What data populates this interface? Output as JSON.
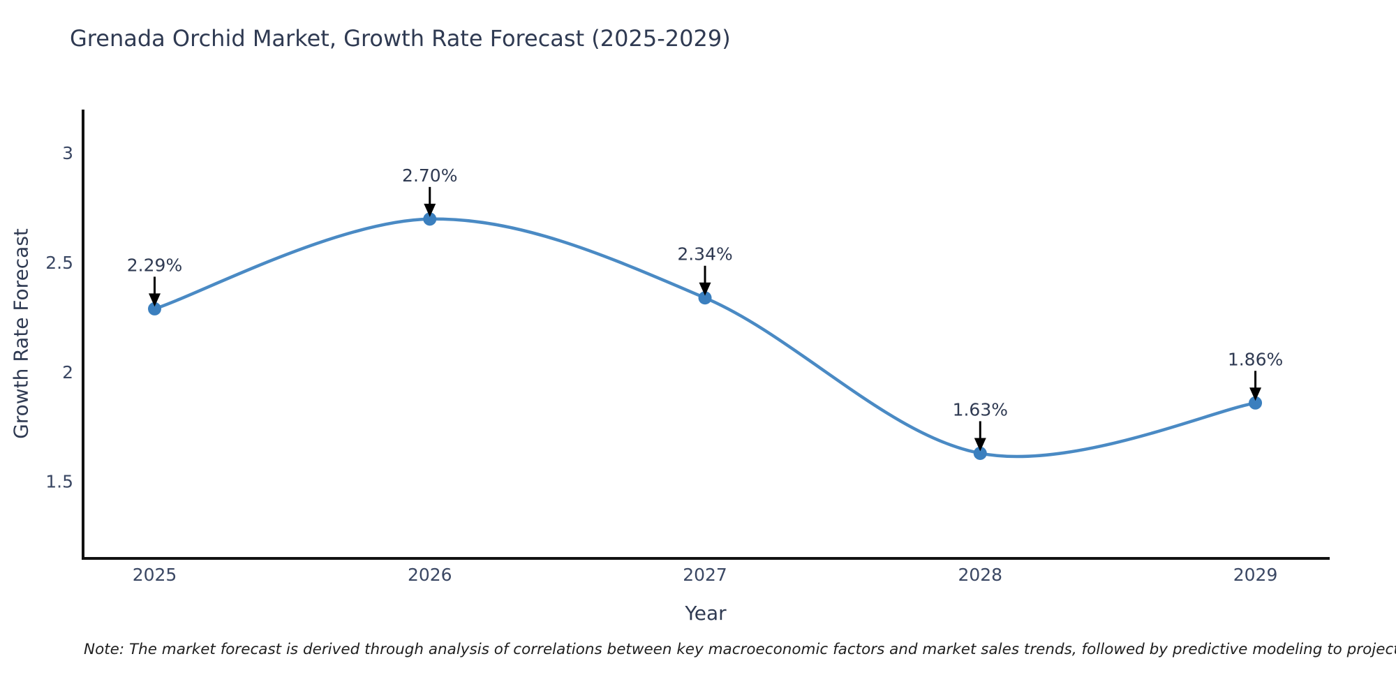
{
  "title": "Grenada Orchid Market, Growth Rate Forecast (2025-2029)",
  "note": "Note: The market forecast is derived through analysis of correlations between key macroeconomic factors and market sales trends, followed by predictive modeling to project future sales",
  "colors": {
    "background": "#ffffff",
    "title_text": "#2f3a52",
    "tick_text": "#3a4763",
    "annotation_text": "#2f3a52",
    "axis_line": "#111111",
    "line": "#4a8ac4",
    "marker": "#3b7fbe",
    "arrow": "#000000",
    "note_text": "#1f1f1f"
  },
  "chart_data": {
    "type": "line",
    "title": "Grenada Orchid Market, Growth Rate Forecast (2025-2029)",
    "xlabel": "Year",
    "ylabel": "Growth Rate Forecast",
    "x": [
      2025,
      2026,
      2027,
      2028,
      2029
    ],
    "values": [
      2.29,
      2.7,
      2.34,
      1.63,
      1.86
    ],
    "point_labels": [
      "2.29%",
      "2.70%",
      "2.34%",
      "1.63%",
      "1.86%"
    ],
    "xticks": [
      "2025",
      "2026",
      "2027",
      "2028",
      "2029"
    ],
    "xtick_values": [
      2025,
      2026,
      2027,
      2028,
      2029
    ],
    "yticks": [
      "1.5",
      "2",
      "2.5",
      "3"
    ],
    "ytick_values": [
      1.5,
      2,
      2.5,
      3
    ],
    "xlim": [
      2024.74,
      2029.27
    ],
    "ylim": [
      1.15,
      3.2
    ],
    "line_shape": "spline",
    "grid": false,
    "legend": false,
    "annotations": "black arrows pointing down from each percentage label to its data point"
  }
}
